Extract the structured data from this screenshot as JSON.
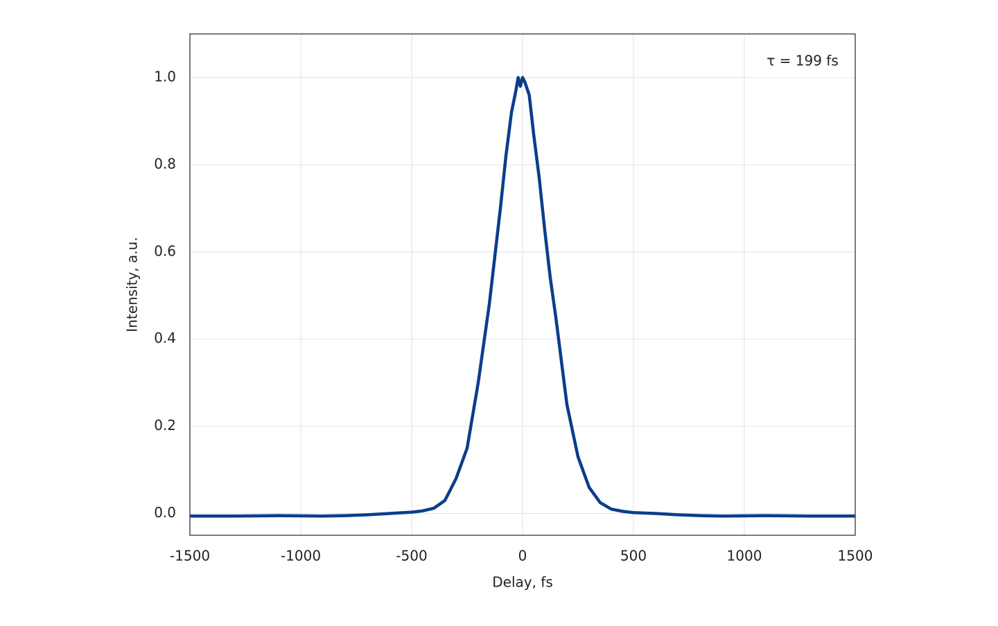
{
  "chart_data": {
    "type": "line",
    "xlabel": "Delay, fs",
    "ylabel": "Intensity, a.u.",
    "annotation": "τ = 199 fs",
    "xlim": [
      -1500,
      1500
    ],
    "ylim": [
      -0.05,
      1.1
    ],
    "xticks": [
      -1500,
      -1000,
      -500,
      0,
      500,
      1000,
      1500
    ],
    "yticks": [
      {
        "value": 0,
        "label": "0.0"
      },
      0.2,
      0.4,
      0.6,
      0.8,
      {
        "value": 1,
        "label": "1.0"
      }
    ],
    "grid": true,
    "x": [
      -1500,
      -1300,
      -1100,
      -900,
      -800,
      -700,
      -600,
      -500,
      -450,
      -400,
      -350,
      -300,
      -250,
      -200,
      -150,
      -100,
      -75,
      -50,
      -30,
      -20,
      -10,
      0,
      10,
      30,
      50,
      75,
      100,
      125,
      150,
      175,
      200,
      250,
      300,
      350,
      400,
      450,
      500,
      600,
      700,
      800,
      900,
      1100,
      1300,
      1500
    ],
    "series": [
      {
        "color": "#0b3d8c",
        "values": [
          -0.006,
          -0.006,
          -0.005,
          -0.006,
          -0.005,
          -0.003,
          0.0,
          0.003,
          0.006,
          0.012,
          0.03,
          0.08,
          0.15,
          0.3,
          0.48,
          0.7,
          0.82,
          0.92,
          0.97,
          1.0,
          0.98,
          1.0,
          0.99,
          0.96,
          0.87,
          0.77,
          0.65,
          0.54,
          0.45,
          0.35,
          0.25,
          0.13,
          0.06,
          0.025,
          0.01,
          0.005,
          0.002,
          0.0,
          -0.003,
          -0.005,
          -0.006,
          -0.005,
          -0.006,
          -0.006
        ]
      }
    ]
  }
}
